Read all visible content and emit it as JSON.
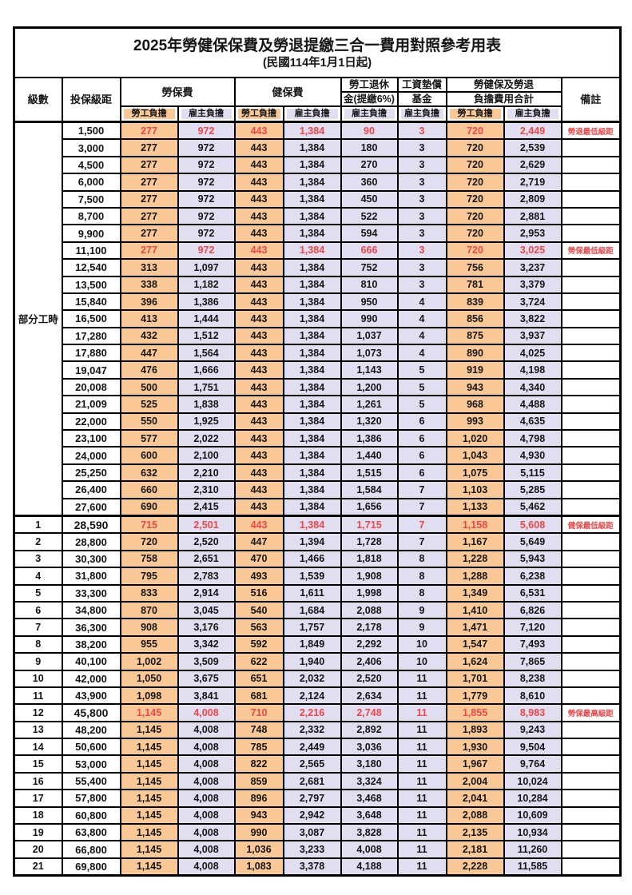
{
  "title": "2025年勞健保保費及勞退提繳三合一費用對照參考用表",
  "subtitle": "(民國114年1月1日起)",
  "colors": {
    "employee_fill": "#FAC897",
    "employer_fill": "#E0DEF0",
    "highlight_red": "#EE4747",
    "border": "#000000"
  },
  "header": {
    "level": "級數",
    "bracket": "投保級距",
    "labor": "勞保費",
    "health": "健保費",
    "pension_l1": "勞工退休",
    "pension_l2": "金(提繳6%)",
    "fund_l1": "工資墊償",
    "fund_l2": "基金",
    "total_l1": "勞健保及勞退",
    "total_l2": "負擔費用合計",
    "remark": "備註",
    "employee": "勞工負擔",
    "employer": "雇主負擔"
  },
  "part_time_label": "部分工時",
  "column_kinds": [
    "emp",
    "er",
    "emp",
    "er",
    "er",
    "er",
    "emp",
    "er"
  ],
  "rows": [
    {
      "lv": "部分工時",
      "lvspan": 23,
      "br": "1,500",
      "v": [
        "277",
        "972",
        "443",
        "1,384",
        "90",
        "3",
        "720",
        "2,449"
      ],
      "rm": "勞退最低級距",
      "red": true,
      "thick": true
    },
    {
      "br": "3,000",
      "v": [
        "277",
        "972",
        "443",
        "1,384",
        "180",
        "3",
        "720",
        "2,539"
      ],
      "rm": ""
    },
    {
      "br": "4,500",
      "v": [
        "277",
        "972",
        "443",
        "1,384",
        "270",
        "3",
        "720",
        "2,629"
      ],
      "rm": ""
    },
    {
      "br": "6,000",
      "v": [
        "277",
        "972",
        "443",
        "1,384",
        "360",
        "3",
        "720",
        "2,719"
      ],
      "rm": ""
    },
    {
      "br": "7,500",
      "v": [
        "277",
        "972",
        "443",
        "1,384",
        "450",
        "3",
        "720",
        "2,809"
      ],
      "rm": ""
    },
    {
      "br": "8,700",
      "v": [
        "277",
        "972",
        "443",
        "1,384",
        "522",
        "3",
        "720",
        "2,881"
      ],
      "rm": ""
    },
    {
      "br": "9,900",
      "v": [
        "277",
        "972",
        "443",
        "1,384",
        "594",
        "3",
        "720",
        "2,953"
      ],
      "rm": ""
    },
    {
      "br": "11,100",
      "v": [
        "277",
        "972",
        "443",
        "1,384",
        "666",
        "3",
        "720",
        "3,025"
      ],
      "rm": "勞保最低級距",
      "red": true
    },
    {
      "br": "12,540",
      "v": [
        "313",
        "1,097",
        "443",
        "1,384",
        "752",
        "3",
        "756",
        "3,237"
      ],
      "rm": ""
    },
    {
      "br": "13,500",
      "v": [
        "338",
        "1,182",
        "443",
        "1,384",
        "810",
        "3",
        "781",
        "3,379"
      ],
      "rm": ""
    },
    {
      "br": "15,840",
      "v": [
        "396",
        "1,386",
        "443",
        "1,384",
        "950",
        "4",
        "839",
        "3,724"
      ],
      "rm": ""
    },
    {
      "br": "16,500",
      "v": [
        "413",
        "1,444",
        "443",
        "1,384",
        "990",
        "4",
        "856",
        "3,822"
      ],
      "rm": ""
    },
    {
      "br": "17,280",
      "v": [
        "432",
        "1,512",
        "443",
        "1,384",
        "1,037",
        "4",
        "875",
        "3,937"
      ],
      "rm": ""
    },
    {
      "br": "17,880",
      "v": [
        "447",
        "1,564",
        "443",
        "1,384",
        "1,073",
        "4",
        "890",
        "4,025"
      ],
      "rm": ""
    },
    {
      "br": "19,047",
      "v": [
        "476",
        "1,666",
        "443",
        "1,384",
        "1,143",
        "5",
        "919",
        "4,198"
      ],
      "rm": ""
    },
    {
      "br": "20,008",
      "v": [
        "500",
        "1,751",
        "443",
        "1,384",
        "1,200",
        "5",
        "943",
        "4,340"
      ],
      "rm": ""
    },
    {
      "br": "21,009",
      "v": [
        "525",
        "1,838",
        "443",
        "1,384",
        "1,261",
        "5",
        "968",
        "4,488"
      ],
      "rm": ""
    },
    {
      "br": "22,000",
      "v": [
        "550",
        "1,925",
        "443",
        "1,384",
        "1,320",
        "6",
        "993",
        "4,635"
      ],
      "rm": ""
    },
    {
      "br": "23,100",
      "v": [
        "577",
        "2,022",
        "443",
        "1,384",
        "1,386",
        "6",
        "1,020",
        "4,798"
      ],
      "rm": ""
    },
    {
      "br": "24,000",
      "v": [
        "600",
        "2,100",
        "443",
        "1,384",
        "1,440",
        "6",
        "1,043",
        "4,930"
      ],
      "rm": ""
    },
    {
      "br": "25,250",
      "v": [
        "632",
        "2,210",
        "443",
        "1,384",
        "1,515",
        "6",
        "1,075",
        "5,115"
      ],
      "rm": ""
    },
    {
      "br": "26,400",
      "v": [
        "660",
        "2,310",
        "443",
        "1,384",
        "1,584",
        "7",
        "1,103",
        "5,285"
      ],
      "rm": ""
    },
    {
      "br": "27,600",
      "v": [
        "690",
        "2,415",
        "443",
        "1,384",
        "1,656",
        "7",
        "1,133",
        "5,462"
      ],
      "rm": ""
    },
    {
      "lv": "1",
      "br": "28,590",
      "v": [
        "715",
        "2,501",
        "443",
        "1,384",
        "1,715",
        "7",
        "1,158",
        "5,608"
      ],
      "rm": "健保最低級距",
      "red": true,
      "emph": true,
      "thick": true
    },
    {
      "lv": "2",
      "br": "28,800",
      "v": [
        "720",
        "2,520",
        "447",
        "1,394",
        "1,728",
        "7",
        "1,167",
        "5,649"
      ],
      "rm": ""
    },
    {
      "lv": "3",
      "br": "30,300",
      "v": [
        "758",
        "2,651",
        "470",
        "1,466",
        "1,818",
        "8",
        "1,228",
        "5,943"
      ],
      "rm": ""
    },
    {
      "lv": "4",
      "br": "31,800",
      "v": [
        "795",
        "2,783",
        "493",
        "1,539",
        "1,908",
        "8",
        "1,288",
        "6,238"
      ],
      "rm": ""
    },
    {
      "lv": "5",
      "br": "33,300",
      "v": [
        "833",
        "2,914",
        "516",
        "1,611",
        "1,998",
        "8",
        "1,349",
        "6,531"
      ],
      "rm": ""
    },
    {
      "lv": "6",
      "br": "34,800",
      "v": [
        "870",
        "3,045",
        "540",
        "1,684",
        "2,088",
        "9",
        "1,410",
        "6,826"
      ],
      "rm": ""
    },
    {
      "lv": "7",
      "br": "36,300",
      "v": [
        "908",
        "3,176",
        "563",
        "1,757",
        "2,178",
        "9",
        "1,471",
        "7,120"
      ],
      "rm": ""
    },
    {
      "lv": "8",
      "br": "38,200",
      "v": [
        "955",
        "3,342",
        "592",
        "1,849",
        "2,292",
        "10",
        "1,547",
        "7,493"
      ],
      "rm": ""
    },
    {
      "lv": "9",
      "br": "40,100",
      "v": [
        "1,002",
        "3,509",
        "622",
        "1,940",
        "2,406",
        "10",
        "1,624",
        "7,865"
      ],
      "rm": ""
    },
    {
      "lv": "10",
      "br": "42,000",
      "v": [
        "1,050",
        "3,675",
        "651",
        "2,032",
        "2,520",
        "11",
        "1,701",
        "8,238"
      ],
      "rm": ""
    },
    {
      "lv": "11",
      "br": "43,900",
      "v": [
        "1,098",
        "3,841",
        "681",
        "2,124",
        "2,634",
        "11",
        "1,779",
        "8,610"
      ],
      "rm": ""
    },
    {
      "lv": "12",
      "br": "45,800",
      "v": [
        "1,145",
        "4,008",
        "710",
        "2,216",
        "2,748",
        "11",
        "1,855",
        "8,983"
      ],
      "rm": "勞保最高級距",
      "red": true,
      "emph": true
    },
    {
      "lv": "13",
      "br": "48,200",
      "v": [
        "1,145",
        "4,008",
        "748",
        "2,332",
        "2,892",
        "11",
        "1,893",
        "9,243"
      ],
      "rm": ""
    },
    {
      "lv": "14",
      "br": "50,600",
      "v": [
        "1,145",
        "4,008",
        "785",
        "2,449",
        "3,036",
        "11",
        "1,930",
        "9,504"
      ],
      "rm": ""
    },
    {
      "lv": "15",
      "br": "53,000",
      "v": [
        "1,145",
        "4,008",
        "822",
        "2,565",
        "3,180",
        "11",
        "1,967",
        "9,764"
      ],
      "rm": ""
    },
    {
      "lv": "16",
      "br": "55,400",
      "v": [
        "1,145",
        "4,008",
        "859",
        "2,681",
        "3,324",
        "11",
        "2,004",
        "10,024"
      ],
      "rm": ""
    },
    {
      "lv": "17",
      "br": "57,800",
      "v": [
        "1,145",
        "4,008",
        "896",
        "2,797",
        "3,468",
        "11",
        "2,041",
        "10,284"
      ],
      "rm": ""
    },
    {
      "lv": "18",
      "br": "60,800",
      "v": [
        "1,145",
        "4,008",
        "943",
        "2,942",
        "3,648",
        "11",
        "2,088",
        "10,609"
      ],
      "rm": ""
    },
    {
      "lv": "19",
      "br": "63,800",
      "v": [
        "1,145",
        "4,008",
        "990",
        "3,087",
        "3,828",
        "11",
        "2,135",
        "10,934"
      ],
      "rm": ""
    },
    {
      "lv": "20",
      "br": "66,800",
      "v": [
        "1,145",
        "4,008",
        "1,036",
        "3,233",
        "4,008",
        "11",
        "2,181",
        "11,260"
      ],
      "rm": ""
    },
    {
      "lv": "21",
      "br": "69,800",
      "v": [
        "1,145",
        "4,008",
        "1,083",
        "3,378",
        "4,188",
        "11",
        "2,228",
        "11,585"
      ],
      "rm": ""
    }
  ]
}
